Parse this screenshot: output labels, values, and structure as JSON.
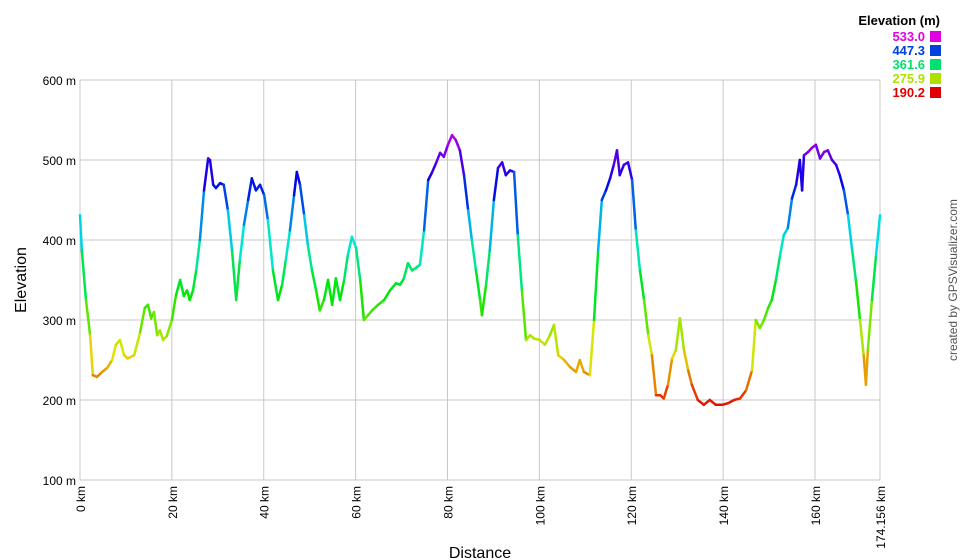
{
  "chart_data": {
    "type": "line",
    "title": "",
    "xlabel": "Distance",
    "ylabel": "Elevation",
    "xlim": [
      0,
      174.156
    ],
    "ylim": [
      100,
      600
    ],
    "grid": true,
    "x_ticks": [
      {
        "v": 0,
        "label": "0 km"
      },
      {
        "v": 20,
        "label": "20 km"
      },
      {
        "v": 40,
        "label": "40 km"
      },
      {
        "v": 60,
        "label": "60 km"
      },
      {
        "v": 80,
        "label": "80 km"
      },
      {
        "v": 100,
        "label": "100 km"
      },
      {
        "v": 120,
        "label": "120 km"
      },
      {
        "v": 140,
        "label": "140 km"
      },
      {
        "v": 160,
        "label": "160 km"
      },
      {
        "v": 174.156,
        "label": "174.156 km"
      }
    ],
    "y_ticks": [
      {
        "v": 100,
        "label": "100 m"
      },
      {
        "v": 200,
        "label": "200 m"
      },
      {
        "v": 300,
        "label": "300 m"
      },
      {
        "v": 400,
        "label": "400 m"
      },
      {
        "v": 500,
        "label": "500 m"
      },
      {
        "v": 600,
        "label": "600 m"
      }
    ],
    "legend": {
      "title": "Elevation (m)",
      "placement": "top-right",
      "entries": [
        {
          "label": "533.0",
          "color": "#e000e0"
        },
        {
          "label": "447.3",
          "color": "#0040e0"
        },
        {
          "label": "361.6",
          "color": "#00e070"
        },
        {
          "label": "275.9",
          "color": "#b0e000"
        },
        {
          "label": "190.2",
          "color": "#e00000"
        }
      ]
    },
    "color_range": [
      190.2,
      533.0
    ],
    "credit": "created by GPSVisualizer.com",
    "points": [
      [
        0,
        431
      ],
      [
        0.4,
        387
      ],
      [
        1.3,
        325
      ],
      [
        2.2,
        281
      ],
      [
        2.8,
        231
      ],
      [
        3.7,
        229
      ],
      [
        4.8,
        235
      ],
      [
        5.9,
        240
      ],
      [
        7.0,
        250
      ],
      [
        7.8,
        269
      ],
      [
        8.7,
        275
      ],
      [
        9.6,
        256
      ],
      [
        10.4,
        252
      ],
      [
        11.8,
        256
      ],
      [
        13.1,
        285
      ],
      [
        14.1,
        315
      ],
      [
        14.8,
        319
      ],
      [
        15.5,
        302
      ],
      [
        16.1,
        310
      ],
      [
        16.8,
        281
      ],
      [
        17.4,
        287
      ],
      [
        18.1,
        275
      ],
      [
        18.9,
        280
      ],
      [
        20.0,
        300
      ],
      [
        20.9,
        331
      ],
      [
        21.8,
        350
      ],
      [
        22.6,
        330
      ],
      [
        23.3,
        337
      ],
      [
        23.9,
        325
      ],
      [
        24.6,
        337
      ],
      [
        25.3,
        362
      ],
      [
        26.1,
        400
      ],
      [
        27.0,
        462
      ],
      [
        27.9,
        502
      ],
      [
        28.3,
        500
      ],
      [
        29.0,
        469
      ],
      [
        29.6,
        465
      ],
      [
        30.5,
        471
      ],
      [
        31.3,
        469
      ],
      [
        32.2,
        437
      ],
      [
        33.1,
        387
      ],
      [
        34.0,
        325
      ],
      [
        34.8,
        375
      ],
      [
        35.7,
        419
      ],
      [
        36.6,
        450
      ],
      [
        37.4,
        477
      ],
      [
        38.3,
        462
      ],
      [
        39.2,
        469
      ],
      [
        40.1,
        456
      ],
      [
        40.9,
        425
      ],
      [
        42.0,
        362
      ],
      [
        43.1,
        325
      ],
      [
        44.0,
        344
      ],
      [
        44.8,
        375
      ],
      [
        45.7,
        412
      ],
      [
        46.6,
        456
      ],
      [
        47.2,
        485
      ],
      [
        47.9,
        469
      ],
      [
        48.8,
        431
      ],
      [
        49.6,
        394
      ],
      [
        50.5,
        362
      ],
      [
        51.4,
        337
      ],
      [
        52.2,
        312
      ],
      [
        53.1,
        325
      ],
      [
        54.0,
        350
      ],
      [
        54.9,
        319
      ],
      [
        55.7,
        352
      ],
      [
        56.6,
        325
      ],
      [
        57.5,
        350
      ],
      [
        58.3,
        381
      ],
      [
        59.2,
        404
      ],
      [
        60.1,
        390
      ],
      [
        61.0,
        350
      ],
      [
        61.8,
        300
      ],
      [
        62.7,
        306
      ],
      [
        63.6,
        312
      ],
      [
        64.9,
        319
      ],
      [
        66.2,
        325
      ],
      [
        67.5,
        337
      ],
      [
        68.8,
        346
      ],
      [
        69.7,
        344
      ],
      [
        70.5,
        352
      ],
      [
        71.4,
        371
      ],
      [
        72.3,
        362
      ],
      [
        73.1,
        365
      ],
      [
        74.0,
        369
      ],
      [
        74.9,
        412
      ],
      [
        75.8,
        475
      ],
      [
        76.6,
        484
      ],
      [
        77.5,
        496
      ],
      [
        78.4,
        509
      ],
      [
        79.2,
        504
      ],
      [
        80.1,
        519
      ],
      [
        81.0,
        531
      ],
      [
        81.8,
        525
      ],
      [
        82.7,
        512
      ],
      [
        83.6,
        481
      ],
      [
        84.5,
        437
      ],
      [
        85.3,
        400
      ],
      [
        86.2,
        362
      ],
      [
        87.1,
        325
      ],
      [
        87.5,
        306
      ],
      [
        88.4,
        344
      ],
      [
        89.2,
        387
      ],
      [
        90.1,
        450
      ],
      [
        91.0,
        490
      ],
      [
        91.9,
        497
      ],
      [
        92.7,
        481
      ],
      [
        93.6,
        487
      ],
      [
        94.5,
        485
      ],
      [
        95.3,
        406
      ],
      [
        96.2,
        337
      ],
      [
        97.1,
        275
      ],
      [
        98.0,
        281
      ],
      [
        98.8,
        277
      ],
      [
        100.1,
        275
      ],
      [
        101.2,
        269
      ],
      [
        102.3,
        281
      ],
      [
        103.2,
        294
      ],
      [
        104.1,
        256
      ],
      [
        105.4,
        250
      ],
      [
        106.7,
        241
      ],
      [
        108.0,
        235
      ],
      [
        108.8,
        250
      ],
      [
        109.7,
        235
      ],
      [
        111.0,
        231
      ],
      [
        111.9,
        300
      ],
      [
        112.8,
        387
      ],
      [
        113.6,
        450
      ],
      [
        114.5,
        462
      ],
      [
        115.4,
        477
      ],
      [
        116.2,
        494
      ],
      [
        116.9,
        512
      ],
      [
        117.5,
        481
      ],
      [
        118.4,
        494
      ],
      [
        119.3,
        497
      ],
      [
        120.2,
        475
      ],
      [
        121.0,
        412
      ],
      [
        121.9,
        362
      ],
      [
        122.8,
        325
      ],
      [
        123.7,
        281
      ],
      [
        124.5,
        256
      ],
      [
        125.4,
        206
      ],
      [
        126.3,
        206
      ],
      [
        127.1,
        202
      ],
      [
        128.0,
        219
      ],
      [
        128.9,
        252
      ],
      [
        129.7,
        262
      ],
      [
        130.6,
        302
      ],
      [
        131.5,
        262
      ],
      [
        132.4,
        237
      ],
      [
        133.2,
        219
      ],
      [
        134.5,
        200
      ],
      [
        135.8,
        194
      ],
      [
        137.1,
        200
      ],
      [
        138.4,
        194
      ],
      [
        139.8,
        194
      ],
      [
        141.1,
        196
      ],
      [
        142.4,
        200
      ],
      [
        143.7,
        202
      ],
      [
        145.0,
        212
      ],
      [
        146.3,
        237
      ],
      [
        147.1,
        300
      ],
      [
        148.0,
        290
      ],
      [
        148.9,
        300
      ],
      [
        149.8,
        315
      ],
      [
        150.6,
        325
      ],
      [
        151.5,
        350
      ],
      [
        152.4,
        381
      ],
      [
        153.2,
        406
      ],
      [
        154.1,
        415
      ],
      [
        155.0,
        452
      ],
      [
        155.9,
        469
      ],
      [
        156.7,
        500
      ],
      [
        157.2,
        462
      ],
      [
        157.6,
        506
      ],
      [
        158.5,
        510
      ],
      [
        159.3,
        515
      ],
      [
        160.2,
        519
      ],
      [
        161.1,
        502
      ],
      [
        162.0,
        510
      ],
      [
        162.8,
        512
      ],
      [
        163.7,
        500
      ],
      [
        164.6,
        494
      ],
      [
        165.4,
        481
      ],
      [
        166.3,
        462
      ],
      [
        167.2,
        431
      ],
      [
        168.1,
        387
      ],
      [
        168.9,
        350
      ],
      [
        169.8,
        300
      ],
      [
        170.6,
        256
      ],
      [
        171.1,
        219
      ],
      [
        171.5,
        262
      ],
      [
        172.4,
        325
      ],
      [
        173.3,
        381
      ],
      [
        174.156,
        431
      ]
    ]
  }
}
